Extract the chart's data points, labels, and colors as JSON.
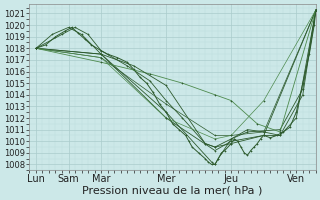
{
  "xlabel": "Pression niveau de la mer( hPa )",
  "background_color": "#cce8e8",
  "grid_major_color": "#aacccc",
  "grid_minor_color": "#bbdddd",
  "line_color_dark": "#2d5a2d",
  "line_color_light": "#4d8a4d",
  "ylim": [
    1007.5,
    1021.8
  ],
  "yticks": [
    1008,
    1009,
    1010,
    1011,
    1012,
    1013,
    1014,
    1015,
    1016,
    1017,
    1018,
    1019,
    1020,
    1021
  ],
  "xtick_labels": [
    "Lun",
    "Sam",
    "Mar",
    "Mer",
    "Jeu",
    "Ven"
  ],
  "xtick_positions": [
    0,
    1,
    2,
    4,
    6,
    8
  ],
  "xlim": [
    -0.2,
    8.6
  ],
  "series": [
    [
      0.0,
      1018.0,
      0.3,
      1018.3,
      0.6,
      1019.0,
      0.9,
      1019.5,
      1.1,
      1019.8,
      1.3,
      1019.3,
      1.5,
      1018.8,
      1.7,
      1018.3,
      2.0,
      1017.8,
      2.2,
      1017.5,
      2.5,
      1017.2,
      2.8,
      1016.8,
      3.0,
      1016.2,
      3.2,
      1015.5,
      3.4,
      1015.0,
      3.6,
      1014.2,
      3.8,
      1013.2,
      4.0,
      1012.5,
      4.2,
      1011.5,
      4.4,
      1011.0,
      4.6,
      1010.5,
      4.7,
      1010.0,
      4.8,
      1009.5,
      5.0,
      1009.0,
      5.2,
      1008.5,
      5.3,
      1008.2,
      5.4,
      1008.0,
      5.5,
      1008.0,
      5.6,
      1008.5,
      5.7,
      1009.0,
      5.8,
      1009.2,
      6.0,
      1009.8,
      6.1,
      1010.2,
      6.2,
      1010.0,
      6.3,
      1009.5,
      6.4,
      1009.0,
      6.5,
      1008.8,
      6.6,
      1009.2,
      6.7,
      1009.5,
      6.8,
      1009.8,
      6.9,
      1010.2,
      7.0,
      1010.5,
      7.2,
      1010.3,
      7.4,
      1010.5,
      7.6,
      1010.8,
      7.8,
      1011.2,
      8.0,
      1012.5,
      8.2,
      1015.0,
      8.4,
      1017.5,
      8.55,
      1020.0,
      8.6,
      1021.3
    ],
    [
      0.0,
      1018.0,
      2.0,
      1017.5,
      4.0,
      1012.0,
      5.5,
      1009.2,
      6.0,
      1010.0,
      7.0,
      1010.5,
      8.6,
      1021.3
    ],
    [
      0.0,
      1018.0,
      2.0,
      1017.5,
      4.0,
      1012.5,
      5.4,
      1008.2,
      5.5,
      1008.0,
      5.6,
      1008.5,
      6.0,
      1010.2,
      6.5,
      1011.0,
      7.0,
      1010.8,
      7.5,
      1010.5,
      8.0,
      1012.0,
      8.6,
      1021.3
    ],
    [
      0.0,
      1018.0,
      0.8,
      1019.2,
      1.2,
      1019.8,
      1.6,
      1019.2,
      2.0,
      1017.8,
      2.8,
      1016.5,
      3.5,
      1015.2,
      4.0,
      1013.5,
      4.5,
      1012.0,
      5.2,
      1009.8,
      5.5,
      1009.5,
      6.0,
      1010.2,
      6.5,
      1010.8,
      7.5,
      1011.0,
      8.2,
      1014.5,
      8.6,
      1021.3
    ],
    [
      0.0,
      1018.0,
      2.0,
      1017.2,
      4.0,
      1013.2,
      5.5,
      1010.5,
      6.0,
      1010.5,
      7.0,
      1010.8,
      8.6,
      1021.3
    ],
    [
      0.0,
      1018.0,
      2.0,
      1017.2,
      4.0,
      1012.0,
      5.5,
      1010.2,
      6.0,
      1010.5,
      7.0,
      1013.5,
      8.6,
      1021.3
    ],
    [
      0.0,
      1018.0,
      2.0,
      1016.8,
      3.5,
      1015.8,
      4.5,
      1015.0,
      5.5,
      1014.0,
      6.0,
      1013.5,
      6.8,
      1011.5,
      7.5,
      1010.8,
      8.6,
      1021.3
    ],
    [
      0.0,
      1018.0,
      0.5,
      1019.2,
      1.0,
      1019.8,
      1.4,
      1019.2,
      2.0,
      1017.5,
      3.0,
      1016.5,
      4.0,
      1014.8,
      5.2,
      1009.8,
      5.5,
      1009.5,
      6.0,
      1009.8,
      7.0,
      1010.5,
      7.5,
      1010.5,
      8.2,
      1014.0,
      8.6,
      1021.3
    ]
  ],
  "marker_color": "#2d5a2d",
  "marker_size": 1.8,
  "xlabel_fontsize": 8,
  "ytick_fontsize": 6,
  "xtick_fontsize": 7
}
